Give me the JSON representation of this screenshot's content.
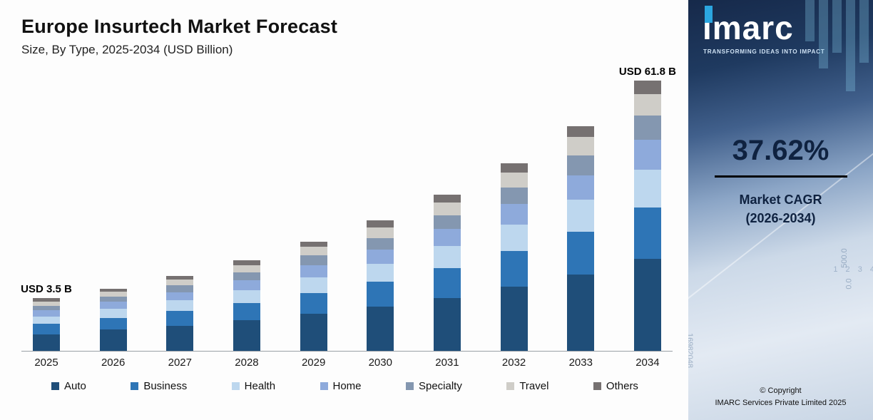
{
  "chart_data": {
    "type": "bar",
    "stacked": true,
    "title": "Europe Insurtech Market Forecast",
    "subtitle": "Size, By Type, 2025-2034 (USD Billion)",
    "unit": "USD Billion",
    "categories": [
      "2025",
      "2026",
      "2027",
      "2028",
      "2029",
      "2030",
      "2031",
      "2032",
      "2033",
      "2034"
    ],
    "totals": [
      3.5,
      4.7,
      6.5,
      9.1,
      12.6,
      17.2,
      23.6,
      32.6,
      44.7,
      61.8
    ],
    "series": [
      {
        "name": "Auto",
        "color": "#1F4E79",
        "values": [
          1.1,
          1.6,
          2.2,
          3.1,
          4.3,
          5.8,
          8.0,
          11.1,
          15.2,
          21.0
        ]
      },
      {
        "name": "Business",
        "color": "#2E75B6",
        "values": [
          0.7,
          0.9,
          1.3,
          1.7,
          2.4,
          3.3,
          4.5,
          6.2,
          8.5,
          11.7
        ]
      },
      {
        "name": "Health",
        "color": "#BDD7EE",
        "values": [
          0.5,
          0.7,
          0.9,
          1.3,
          1.8,
          2.4,
          3.3,
          4.6,
          6.3,
          8.7
        ]
      },
      {
        "name": "Home",
        "color": "#8EAADB",
        "values": [
          0.4,
          0.5,
          0.7,
          1.0,
          1.4,
          1.9,
          2.6,
          3.6,
          4.9,
          6.8
        ]
      },
      {
        "name": "Specialty",
        "color": "#8497B0",
        "values": [
          0.3,
          0.4,
          0.6,
          0.8,
          1.1,
          1.5,
          2.1,
          2.9,
          4.0,
          5.6
        ]
      },
      {
        "name": "Travel",
        "color": "#CFCDC8",
        "values": [
          0.3,
          0.4,
          0.5,
          0.7,
          1.0,
          1.4,
          1.9,
          2.6,
          3.6,
          4.9
        ]
      },
      {
        "name": "Others",
        "color": "#767171",
        "values": [
          0.2,
          0.2,
          0.3,
          0.5,
          0.6,
          0.9,
          1.2,
          1.6,
          2.2,
          3.1
        ]
      }
    ],
    "first_bar_label": "USD 3.5 B",
    "last_bar_label": "USD 61.8 B",
    "ylim": [
      0,
      65
    ],
    "grid": false,
    "legend_position": "bottom"
  },
  "sidebar": {
    "logo_text": "imarc",
    "tagline": "TRANSFORMING IDEAS INTO IMPACT",
    "cagr_value": "37.62%",
    "cagr_label_line1": "Market CAGR",
    "cagr_label_line2": "(2026-2034)",
    "copyright_line1": "© Copyright",
    "copyright_line2": "IMARC Services Private Limited 2025",
    "decor": {
      "num1": "500.0",
      "num2": "0.0",
      "num3": "1 2 3 4",
      "num4": "16982048"
    }
  }
}
